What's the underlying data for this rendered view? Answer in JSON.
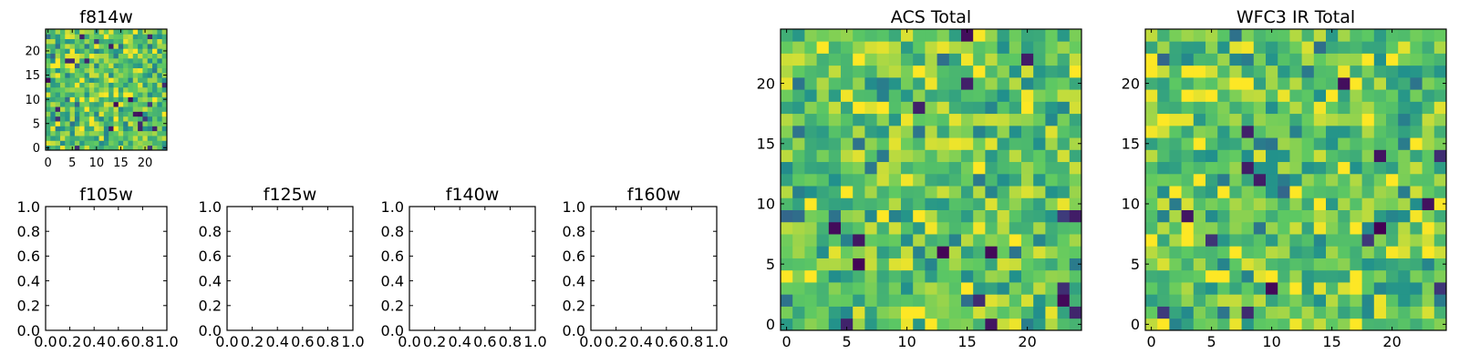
{
  "chart_data": [
    {
      "type": "heatmap",
      "title": "f814w",
      "grid_size": 25,
      "xlim": [
        -0.5,
        24.5
      ],
      "ylim": [
        -0.5,
        24.5
      ],
      "xticks": [
        0,
        5,
        10,
        15,
        20
      ],
      "yticks": [
        0,
        5,
        10,
        15,
        20
      ],
      "colormap": "viridis",
      "seed": 814,
      "values_note": "noise"
    },
    {
      "type": "heatmap",
      "title": "f105w",
      "empty": true,
      "xlim": [
        0,
        1
      ],
      "ylim": [
        0,
        1
      ],
      "xticks": [
        "0.0",
        "0.2",
        "0.4",
        "0.6",
        "0.8",
        "1.0"
      ],
      "yticks": [
        "0.0",
        "0.2",
        "0.4",
        "0.6",
        "0.8",
        "1.0"
      ]
    },
    {
      "type": "heatmap",
      "title": "f125w",
      "empty": true,
      "xlim": [
        0,
        1
      ],
      "ylim": [
        0,
        1
      ],
      "xticks": [
        "0.0",
        "0.2",
        "0.4",
        "0.6",
        "0.8",
        "1.0"
      ],
      "yticks": [
        "0.0",
        "0.2",
        "0.4",
        "0.6",
        "0.8",
        "1.0"
      ]
    },
    {
      "type": "heatmap",
      "title": "f140w",
      "empty": true,
      "xlim": [
        0,
        1
      ],
      "ylim": [
        0,
        1
      ],
      "xticks": [
        "0.0",
        "0.2",
        "0.4",
        "0.6",
        "0.8",
        "1.0"
      ],
      "yticks": [
        "0.0",
        "0.2",
        "0.4",
        "0.6",
        "0.8",
        "1.0"
      ]
    },
    {
      "type": "heatmap",
      "title": "f160w",
      "empty": true,
      "xlim": [
        0,
        1
      ],
      "ylim": [
        0,
        1
      ],
      "xticks": [
        "0.0",
        "0.2",
        "0.4",
        "0.6",
        "0.8",
        "1.0"
      ],
      "yticks": [
        "0.0",
        "0.2",
        "0.4",
        "0.6",
        "0.8",
        "1.0"
      ]
    },
    {
      "type": "heatmap",
      "title": "ACS Total",
      "grid_size": 25,
      "xlim": [
        -0.5,
        24.5
      ],
      "ylim": [
        -0.5,
        24.5
      ],
      "xticks": [
        0,
        5,
        10,
        15,
        20
      ],
      "yticks": [
        0,
        5,
        10,
        15,
        20
      ],
      "colormap": "viridis",
      "seed": 1001
    },
    {
      "type": "heatmap",
      "title": "WFC3 IR Total",
      "grid_size": 25,
      "xlim": [
        -0.5,
        24.5
      ],
      "ylim": [
        -0.5,
        24.5
      ],
      "xticks": [
        0,
        5,
        10,
        15,
        20
      ],
      "yticks": [
        0,
        5,
        10,
        15,
        20
      ],
      "colormap": "viridis",
      "seed": 3003
    }
  ],
  "colors": {
    "viridis": [
      "#440154",
      "#3b528b",
      "#21918c",
      "#5ec962",
      "#fde725"
    ],
    "axes": "#000000",
    "background": "#ffffff"
  }
}
